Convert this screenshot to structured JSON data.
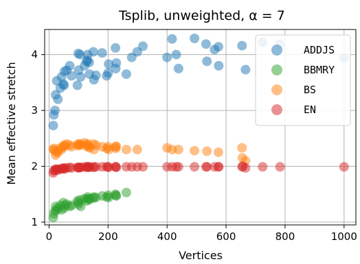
{
  "chart_data": {
    "type": "scatter",
    "title": "Tsplib, unweighted, α = 7",
    "xlabel": "Vertices",
    "ylabel": "Mean effective stretch",
    "xlim": [
      -15,
      1040
    ],
    "ylim": [
      0.95,
      4.45
    ],
    "xticks": [
      0,
      200,
      400,
      600,
      800,
      1000
    ],
    "yticks": [
      1,
      2,
      3,
      4
    ],
    "grid": true,
    "legend_position": "top-right",
    "series": [
      {
        "name": "ADDJS",
        "color": "#1f77b4",
        "points": [
          [
            14,
            2.73
          ],
          [
            16,
            2.92
          ],
          [
            20,
            3.0
          ],
          [
            22,
            3.28
          ],
          [
            26,
            3.53
          ],
          [
            30,
            3.2
          ],
          [
            38,
            3.4
          ],
          [
            42,
            3.6
          ],
          [
            48,
            3.47
          ],
          [
            51,
            3.45
          ],
          [
            52,
            3.7
          ],
          [
            60,
            3.72
          ],
          [
            70,
            3.8
          ],
          [
            76,
            3.62
          ],
          [
            96,
            3.45
          ],
          [
            99,
            4.02
          ],
          [
            100,
            3.72
          ],
          [
            105,
            4.0
          ],
          [
            107,
            3.6
          ],
          [
            120,
            3.8
          ],
          [
            127,
            3.88
          ],
          [
            130,
            3.9
          ],
          [
            131,
            4.0
          ],
          [
            136,
            3.86
          ],
          [
            137,
            3.65
          ],
          [
            150,
            4.05
          ],
          [
            152,
            3.55
          ],
          [
            159,
            3.63
          ],
          [
            180,
            4.03
          ],
          [
            195,
            3.62
          ],
          [
            200,
            3.67
          ],
          [
            202,
            3.83
          ],
          [
            225,
            4.12
          ],
          [
            226,
            3.75
          ],
          [
            228,
            3.85
          ],
          [
            262,
            3.65
          ],
          [
            280,
            3.95
          ],
          [
            299,
            4.05
          ],
          [
            318,
            4.15
          ],
          [
            400,
            3.95
          ],
          [
            417,
            4.28
          ],
          [
            431,
            4.0
          ],
          [
            439,
            3.75
          ],
          [
            493,
            4.29
          ],
          [
            532,
            4.19
          ],
          [
            535,
            3.88
          ],
          [
            561,
            4.09
          ],
          [
            574,
            4.14
          ],
          [
            575,
            3.8
          ],
          [
            654,
            4.16
          ],
          [
            666,
            3.73
          ],
          [
            724,
            4.22
          ],
          [
            783,
            4.19
          ],
          [
            1000,
            3.94
          ]
        ]
      },
      {
        "name": "BBMRY",
        "color": "#2ca02c",
        "points": [
          [
            14,
            1.08
          ],
          [
            16,
            1.15
          ],
          [
            20,
            1.2
          ],
          [
            22,
            1.28
          ],
          [
            26,
            1.22
          ],
          [
            30,
            1.25
          ],
          [
            38,
            1.3
          ],
          [
            42,
            1.22
          ],
          [
            48,
            1.35
          ],
          [
            51,
            1.25
          ],
          [
            52,
            1.3
          ],
          [
            60,
            1.32
          ],
          [
            70,
            1.28
          ],
          [
            76,
            1.3
          ],
          [
            96,
            1.38
          ],
          [
            99,
            1.35
          ],
          [
            100,
            1.32
          ],
          [
            105,
            1.4
          ],
          [
            107,
            1.28
          ],
          [
            120,
            1.42
          ],
          [
            127,
            1.38
          ],
          [
            130,
            1.42
          ],
          [
            131,
            1.45
          ],
          [
            136,
            1.4
          ],
          [
            137,
            1.42
          ],
          [
            150,
            1.43
          ],
          [
            152,
            1.45
          ],
          [
            159,
            1.44
          ],
          [
            180,
            1.47
          ],
          [
            195,
            1.45
          ],
          [
            200,
            1.48
          ],
          [
            202,
            1.44
          ],
          [
            225,
            1.5
          ],
          [
            226,
            1.48
          ],
          [
            228,
            1.47
          ],
          [
            262,
            1.53
          ]
        ]
      },
      {
        "name": "BS",
        "color": "#ff7f0e",
        "points": [
          [
            14,
            2.3
          ],
          [
            16,
            2.32
          ],
          [
            20,
            2.28
          ],
          [
            22,
            2.2
          ],
          [
            26,
            2.25
          ],
          [
            30,
            2.25
          ],
          [
            38,
            2.33
          ],
          [
            42,
            2.3
          ],
          [
            48,
            2.35
          ],
          [
            51,
            2.38
          ],
          [
            52,
            2.36
          ],
          [
            60,
            2.4
          ],
          [
            70,
            2.38
          ],
          [
            76,
            2.35
          ],
          [
            96,
            2.38
          ],
          [
            99,
            2.4
          ],
          [
            100,
            2.37
          ],
          [
            105,
            2.4
          ],
          [
            107,
            2.38
          ],
          [
            120,
            2.42
          ],
          [
            127,
            2.36
          ],
          [
            130,
            2.38
          ],
          [
            131,
            2.4
          ],
          [
            136,
            2.35
          ],
          [
            137,
            2.33
          ],
          [
            150,
            2.4
          ],
          [
            152,
            2.3
          ],
          [
            159,
            2.38
          ],
          [
            180,
            2.35
          ],
          [
            195,
            2.32
          ],
          [
            200,
            2.35
          ],
          [
            202,
            2.3
          ],
          [
            225,
            2.35
          ],
          [
            226,
            2.32
          ],
          [
            228,
            2.36
          ],
          [
            262,
            2.3
          ],
          [
            299,
            2.3
          ],
          [
            400,
            2.33
          ],
          [
            417,
            2.3
          ],
          [
            439,
            2.3
          ],
          [
            493,
            2.28
          ],
          [
            535,
            2.27
          ],
          [
            574,
            2.25
          ],
          [
            654,
            2.33
          ],
          [
            655,
            2.15
          ],
          [
            666,
            2.1
          ]
        ]
      },
      {
        "name": "EN",
        "color": "#d62728",
        "points": [
          [
            14,
            1.88
          ],
          [
            16,
            1.92
          ],
          [
            20,
            1.93
          ],
          [
            22,
            1.95
          ],
          [
            26,
            1.95
          ],
          [
            30,
            1.93
          ],
          [
            38,
            1.95
          ],
          [
            42,
            1.96
          ],
          [
            48,
            1.96
          ],
          [
            51,
            1.97
          ],
          [
            52,
            1.95
          ],
          [
            60,
            1.97
          ],
          [
            70,
            1.98
          ],
          [
            76,
            1.97
          ],
          [
            96,
            1.98
          ],
          [
            99,
            1.98
          ],
          [
            100,
            1.97
          ],
          [
            105,
            1.98
          ],
          [
            107,
            1.98
          ],
          [
            120,
            1.99
          ],
          [
            127,
            1.98
          ],
          [
            130,
            1.99
          ],
          [
            131,
            1.99
          ],
          [
            136,
            1.99
          ],
          [
            137,
            1.98
          ],
          [
            150,
            1.99
          ],
          [
            152,
            1.98
          ],
          [
            159,
            1.99
          ],
          [
            180,
            1.99
          ],
          [
            195,
            1.99
          ],
          [
            200,
            1.99
          ],
          [
            202,
            1.98
          ],
          [
            225,
            1.99
          ],
          [
            226,
            1.99
          ],
          [
            228,
            1.98
          ],
          [
            262,
            1.99
          ],
          [
            280,
            1.99
          ],
          [
            299,
            1.99
          ],
          [
            318,
            1.99
          ],
          [
            400,
            1.99
          ],
          [
            417,
            1.99
          ],
          [
            431,
            1.99
          ],
          [
            439,
            1.99
          ],
          [
            493,
            1.99
          ],
          [
            532,
            1.99
          ],
          [
            535,
            1.99
          ],
          [
            561,
            1.99
          ],
          [
            574,
            1.99
          ],
          [
            575,
            1.99
          ],
          [
            654,
            1.99
          ],
          [
            657,
            2.0
          ],
          [
            666,
            1.97
          ],
          [
            724,
            1.99
          ],
          [
            783,
            1.99
          ],
          [
            1000,
            1.99
          ]
        ]
      }
    ]
  }
}
